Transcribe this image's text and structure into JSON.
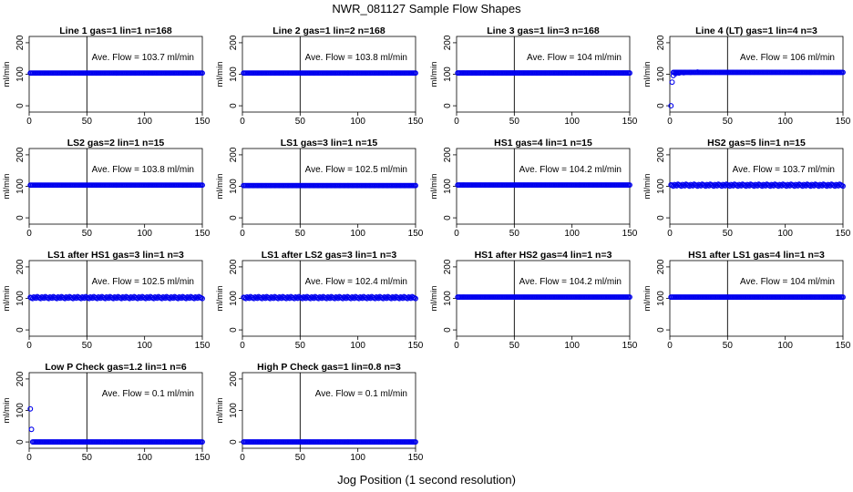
{
  "figure": {
    "title": "NWR_081127  Sample Flow Shapes",
    "xlabel": "Jog Position (1 second resolution)"
  },
  "style": {
    "point_color": "#0000ee",
    "axis_color": "#000000",
    "background": "#ffffff"
  },
  "chart_data": [
    {
      "type": "scatter",
      "title": "Line 1 gas=1 lin=1 n=168",
      "ylabel": "ml/min",
      "xlim": [
        0,
        150
      ],
      "ylim": [
        -20,
        220
      ],
      "xticks": [
        0,
        50,
        100,
        150
      ],
      "yticks": [
        0,
        100,
        200
      ],
      "vline": 50,
      "annotation": "Ave. Flow = 103.7 ml/min",
      "x_range": [
        1,
        150
      ],
      "y_mean": 103.7,
      "pattern": "flat",
      "outliers": []
    },
    {
      "type": "scatter",
      "title": "Line 2 gas=1 lin=2 n=168",
      "ylabel": "ml/min",
      "xlim": [
        0,
        150
      ],
      "ylim": [
        -20,
        220
      ],
      "xticks": [
        0,
        50,
        100,
        150
      ],
      "yticks": [
        0,
        100,
        200
      ],
      "vline": 50,
      "annotation": "Ave. Flow = 103.8 ml/min",
      "x_range": [
        1,
        150
      ],
      "y_mean": 103.8,
      "pattern": "flat",
      "outliers": []
    },
    {
      "type": "scatter",
      "title": "Line 3 gas=1 lin=3 n=168",
      "ylabel": "ml/min",
      "xlim": [
        0,
        150
      ],
      "ylim": [
        -20,
        220
      ],
      "xticks": [
        0,
        50,
        100,
        150
      ],
      "yticks": [
        0,
        100,
        200
      ],
      "vline": 50,
      "annotation": "Ave. Flow = 104 ml/min",
      "x_range": [
        1,
        150
      ],
      "y_mean": 104,
      "pattern": "flat",
      "outliers": []
    },
    {
      "type": "scatter",
      "title": "Line 4 (LT) gas=1 lin=4 n=3",
      "ylabel": "ml/min",
      "xlim": [
        0,
        150
      ],
      "ylim": [
        -20,
        220
      ],
      "xticks": [
        0,
        50,
        100,
        150
      ],
      "yticks": [
        0,
        100,
        200
      ],
      "vline": 50,
      "annotation": "Ave. Flow = 106 ml/min",
      "x_range": [
        3,
        150
      ],
      "y_mean": 106,
      "pattern": "flat",
      "outliers": [
        [
          1,
          0
        ],
        [
          2,
          75
        ],
        [
          3,
          96
        ],
        [
          5,
          102
        ],
        [
          8,
          104
        ],
        [
          12,
          105
        ],
        [
          18,
          106
        ],
        [
          24,
          107
        ]
      ]
    },
    {
      "type": "scatter",
      "title": "LS2 gas=2 lin=1 n=15",
      "ylabel": "ml/min",
      "xlim": [
        0,
        150
      ],
      "ylim": [
        -20,
        220
      ],
      "xticks": [
        0,
        50,
        100,
        150
      ],
      "yticks": [
        0,
        100,
        200
      ],
      "vline": 50,
      "annotation": "Ave. Flow = 103.8 ml/min",
      "x_range": [
        1,
        150
      ],
      "y_mean": 103.8,
      "pattern": "flat",
      "outliers": []
    },
    {
      "type": "scatter",
      "title": "LS1 gas=3 lin=1 n=15",
      "ylabel": "ml/min",
      "xlim": [
        0,
        150
      ],
      "ylim": [
        -20,
        220
      ],
      "xticks": [
        0,
        50,
        100,
        150
      ],
      "yticks": [
        0,
        100,
        200
      ],
      "vline": 50,
      "annotation": "Ave. Flow = 102.5 ml/min",
      "x_range": [
        1,
        150
      ],
      "y_mean": 102.5,
      "pattern": "flat",
      "outliers": []
    },
    {
      "type": "scatter",
      "title": "HS1 gas=4 lin=1 n=15",
      "ylabel": "ml/min",
      "xlim": [
        0,
        150
      ],
      "ylim": [
        -20,
        220
      ],
      "xticks": [
        0,
        50,
        100,
        150
      ],
      "yticks": [
        0,
        100,
        200
      ],
      "vline": 50,
      "annotation": "Ave. Flow = 104.2 ml/min",
      "x_range": [
        1,
        150
      ],
      "y_mean": 104.2,
      "pattern": "flat",
      "outliers": []
    },
    {
      "type": "scatter",
      "title": "HS2 gas=5 lin=1 n=15",
      "ylabel": "ml/min",
      "xlim": [
        0,
        150
      ],
      "ylim": [
        -20,
        220
      ],
      "xticks": [
        0,
        50,
        100,
        150
      ],
      "yticks": [
        0,
        100,
        200
      ],
      "vline": 50,
      "annotation": "Ave. Flow = 103.7 ml/min",
      "x_range": [
        1,
        150
      ],
      "y_mean": 103.7,
      "pattern": "noisy",
      "outliers": []
    },
    {
      "type": "scatter",
      "title": "LS1 after HS1 gas=3 lin=1 n=3",
      "ylabel": "ml/min",
      "xlim": [
        0,
        150
      ],
      "ylim": [
        -20,
        220
      ],
      "xticks": [
        0,
        50,
        100,
        150
      ],
      "yticks": [
        0,
        100,
        200
      ],
      "vline": 50,
      "annotation": "Ave. Flow = 102.5 ml/min",
      "x_range": [
        1,
        150
      ],
      "y_mean": 102.5,
      "pattern": "noisy",
      "outliers": []
    },
    {
      "type": "scatter",
      "title": "LS1 after LS2 gas=3 lin=1 n=3",
      "ylabel": "ml/min",
      "xlim": [
        0,
        150
      ],
      "ylim": [
        -20,
        220
      ],
      "xticks": [
        0,
        50,
        100,
        150
      ],
      "yticks": [
        0,
        100,
        200
      ],
      "vline": 50,
      "annotation": "Ave. Flow = 102.4 ml/min",
      "x_range": [
        1,
        150
      ],
      "y_mean": 102.4,
      "pattern": "noisy",
      "outliers": []
    },
    {
      "type": "scatter",
      "title": "HS1 after HS2 gas=4 lin=1 n=3",
      "ylabel": "ml/min",
      "xlim": [
        0,
        150
      ],
      "ylim": [
        -20,
        220
      ],
      "xticks": [
        0,
        50,
        100,
        150
      ],
      "yticks": [
        0,
        100,
        200
      ],
      "vline": 50,
      "annotation": "Ave. Flow = 104.2 ml/min",
      "x_range": [
        1,
        150
      ],
      "y_mean": 104.2,
      "pattern": "flat",
      "outliers": []
    },
    {
      "type": "scatter",
      "title": "HS1 after LS1 gas=4 lin=1 n=3",
      "ylabel": "ml/min",
      "xlim": [
        0,
        150
      ],
      "ylim": [
        -20,
        220
      ],
      "xticks": [
        0,
        50,
        100,
        150
      ],
      "yticks": [
        0,
        100,
        200
      ],
      "vline": 50,
      "annotation": "Ave. Flow = 104 ml/min",
      "x_range": [
        1,
        150
      ],
      "y_mean": 104,
      "pattern": "flat",
      "outliers": []
    },
    {
      "type": "scatter",
      "title": "Low P Check gas=1.2 lin=1 n=6",
      "ylabel": "ml/min",
      "xlim": [
        0,
        150
      ],
      "ylim": [
        -20,
        220
      ],
      "xticks": [
        0,
        50,
        100,
        150
      ],
      "yticks": [
        0,
        100,
        200
      ],
      "vline": 50,
      "annotation": "Ave. Flow = 0.1 ml/min",
      "x_range": [
        3,
        150
      ],
      "y_mean": 0.1,
      "pattern": "flat",
      "outliers": [
        [
          1,
          105
        ],
        [
          2,
          40
        ]
      ]
    },
    {
      "type": "scatter",
      "title": "High P Check gas=1 lin=0.8 n=3",
      "ylabel": "ml/min",
      "xlim": [
        0,
        150
      ],
      "ylim": [
        -20,
        220
      ],
      "xticks": [
        0,
        50,
        100,
        150
      ],
      "yticks": [
        0,
        100,
        200
      ],
      "vline": 50,
      "annotation": "Ave. Flow = 0.1 ml/min",
      "x_range": [
        1,
        150
      ],
      "y_mean": 0.1,
      "pattern": "flat",
      "outliers": []
    }
  ]
}
